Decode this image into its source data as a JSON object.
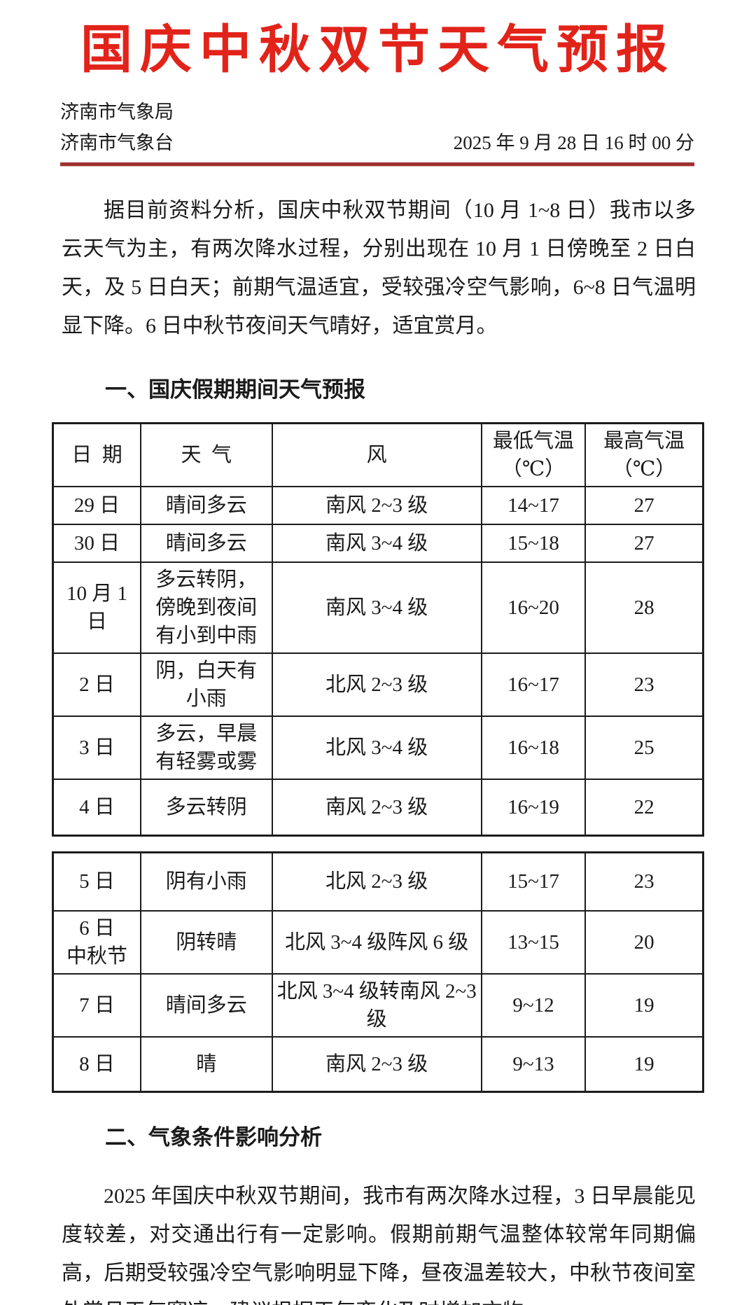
{
  "header": {
    "title": "国庆中秋双节天气预报",
    "org_line1": "济南市气象局",
    "org_line2": "济南市气象台",
    "datetime": "2025 年 9 月 28 日 16 时 00 分"
  },
  "intro_paragraph": "据目前资料分析，国庆中秋双节期间（10 月 1~8 日）我市以多云天气为主，有两次降水过程，分别出现在 10 月 1 日傍晚至 2 日白天，及 5 日白天；前期气温适宜，受较强冷空气影响，6~8 日气温明显下降。6 日中秋节夜间天气晴好，适宜赏月。",
  "section1": {
    "heading": "一、国庆假期期间天气预报"
  },
  "forecast_table": {
    "headers": [
      "日  期",
      "天  气",
      "风",
      "最低气温\n（℃）",
      "最高气温\n（℃）"
    ],
    "columns": [
      "date",
      "weather",
      "wind",
      "low",
      "high"
    ],
    "part1_rows": [
      {
        "date": "29 日",
        "weather": "晴间多云",
        "wind": "南风 2~3 级",
        "low": "14~17",
        "high": "27"
      },
      {
        "date": "30 日",
        "weather": "晴间多云",
        "wind": "南风 3~4 级",
        "low": "15~18",
        "high": "27"
      },
      {
        "date": "10 月 1 日",
        "weather": "多云转阴，傍晚到夜间有小到中雨",
        "wind": "南风 3~4 级",
        "low": "16~20",
        "high": "28"
      },
      {
        "date": "2 日",
        "weather": "阴，白天有小雨",
        "wind": "北风 2~3 级",
        "low": "16~17",
        "high": "23"
      },
      {
        "date": "3 日",
        "weather": "多云，早晨有轻雾或雾",
        "wind": "北风 3~4 级",
        "low": "16~18",
        "high": "25"
      },
      {
        "date": "4 日",
        "weather": "多云转阴",
        "wind": "南风 2~3 级",
        "low": "16~19",
        "high": "22"
      }
    ],
    "part2_rows": [
      {
        "date": "5 日",
        "weather": "阴有小雨",
        "wind": "北风 2~3 级",
        "low": "15~17",
        "high": "23"
      },
      {
        "date": "6 日\n中秋节",
        "weather": "阴转晴",
        "wind": "北风 3~4 级阵风 6 级",
        "low": "13~15",
        "high": "20"
      },
      {
        "date": "7 日",
        "weather": "晴间多云",
        "wind": "北风 3~4 级转南风 2~3 级",
        "low": "9~12",
        "high": "19"
      },
      {
        "date": "8 日",
        "weather": "晴",
        "wind": "南风 2~3 级",
        "low": "9~13",
        "high": "19"
      }
    ]
  },
  "section2": {
    "heading": "二、气象条件影响分析",
    "paragraph": "2025 年国庆中秋双节期间，我市有两次降水过程，3 日早晨能见度较差，对交通出行有一定影响。假期前期气温整体较常年同期偏高，后期受较强冷空气影响明显下降，昼夜温差较大，中秋节夜间室外赏月天气寒凉，建议根据天气变化及时增加衣物。"
  },
  "colors": {
    "title_red": "#e2231a",
    "rule_red": "#a03030",
    "text": "#1a1a1a",
    "table_border": "#1c1c1c"
  }
}
